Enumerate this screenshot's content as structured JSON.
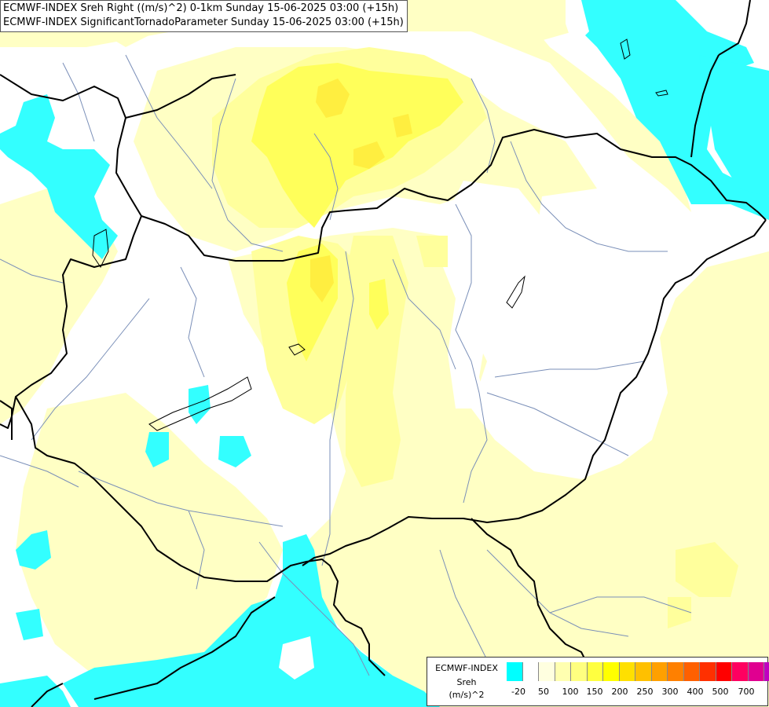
{
  "header": {
    "line1": "ECMWF-INDEX Sreh Right ((m/s)^2) 0-1km Sunday 15-06-2025 03:00 (+15h)",
    "line2": "ECMWF-INDEX SignificantTornadoParameter Sunday 15-06-2025 03:00 (+15h)"
  },
  "legend": {
    "line1": "ECMWF-INDEX",
    "line2": "Sreh",
    "line3": "(m/s)^2",
    "ticks": [
      "-20",
      "50",
      "100",
      "150",
      "200",
      "250",
      "300",
      "400",
      "500",
      "700"
    ],
    "colors": [
      "#00ffff",
      "#ffffff",
      "#ffffe0",
      "#ffffb0",
      "#ffff80",
      "#ffff40",
      "#ffff00",
      "#ffe000",
      "#ffc000",
      "#ffa000",
      "#ff8000",
      "#ff6000",
      "#ff3000",
      "#ff0000",
      "#ff0060",
      "#e00090",
      "#c000c0",
      "#a000e0",
      "#7000ff",
      "#5000d0",
      "#3000a0",
      "#100070"
    ]
  },
  "map_colors": {
    "cyan": "#33ffff",
    "pale_yellow": "#ffffc4",
    "light_yellow": "#ffff9c",
    "yellow": "#ffff5a",
    "strong_yellow": "#ffee40",
    "border": "#000000",
    "river": "#7a8fb8"
  }
}
